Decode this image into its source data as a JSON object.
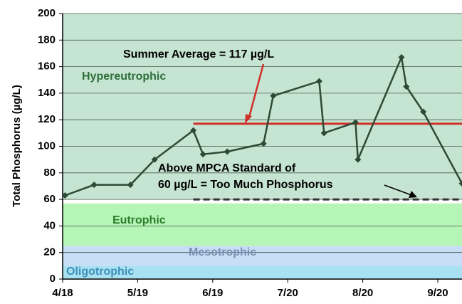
{
  "chart_data": {
    "type": "line",
    "y_label": "Total Phosphorus (µg/L)",
    "x": [
      "4/19",
      "5/1",
      "5/16",
      "5/26",
      "6/11",
      "6/15",
      "6/25",
      "7/10",
      "7/14",
      "8/2",
      "8/4",
      "8/17",
      "8/18",
      "9/5",
      "9/7",
      "9/14",
      "9/30"
    ],
    "series": [
      {
        "color": "#2d4a35",
        "values": [
          63,
          71,
          71,
          90,
          112,
          94,
          96,
          102,
          138,
          149,
          110,
          118,
          90,
          167,
          145,
          126,
          72
        ]
      }
    ],
    "xlim": [
      "4/18",
      "9/30"
    ],
    "xticks": [
      "4/18",
      "5/19",
      "6/19",
      "7/20",
      "8/20",
      "9/20"
    ],
    "ylim": [
      0,
      200
    ],
    "yticks": [
      0,
      20,
      40,
      60,
      80,
      100,
      120,
      140,
      160,
      180,
      200
    ],
    "grid": true,
    "zones": [
      {
        "name": "Oligotrophic",
        "from": 0,
        "to": 10,
        "color": "#a8e2f2",
        "text_color": "#3f8fb8"
      },
      {
        "name": "Mesotrophic",
        "from": 10,
        "to": 25,
        "color": "#c8def7",
        "text_color": "#7b8fb2"
      },
      {
        "name": "Eutrophic",
        "from": 25,
        "to": 57,
        "color": "#b5f5b5",
        "text_color": "#2b7d2b"
      },
      {
        "name": "Hypereutrophic",
        "from": 60,
        "to": 200,
        "color": "#c6e4d2",
        "text_color": "#2f6e3a"
      }
    ],
    "reference_lines": [
      {
        "value": 117,
        "from": "6/11",
        "to": "9/30",
        "color": "#d0302a",
        "dashed": false,
        "label": "Summer Average = 117 µg/L"
      },
      {
        "value": 60,
        "from": "6/11",
        "to": "9/30",
        "color": "#333333",
        "dashed": true,
        "label_lines": [
          "Above MPCA Standard of",
          "60 µg/L = Too Much Phosphorus"
        ]
      }
    ]
  }
}
